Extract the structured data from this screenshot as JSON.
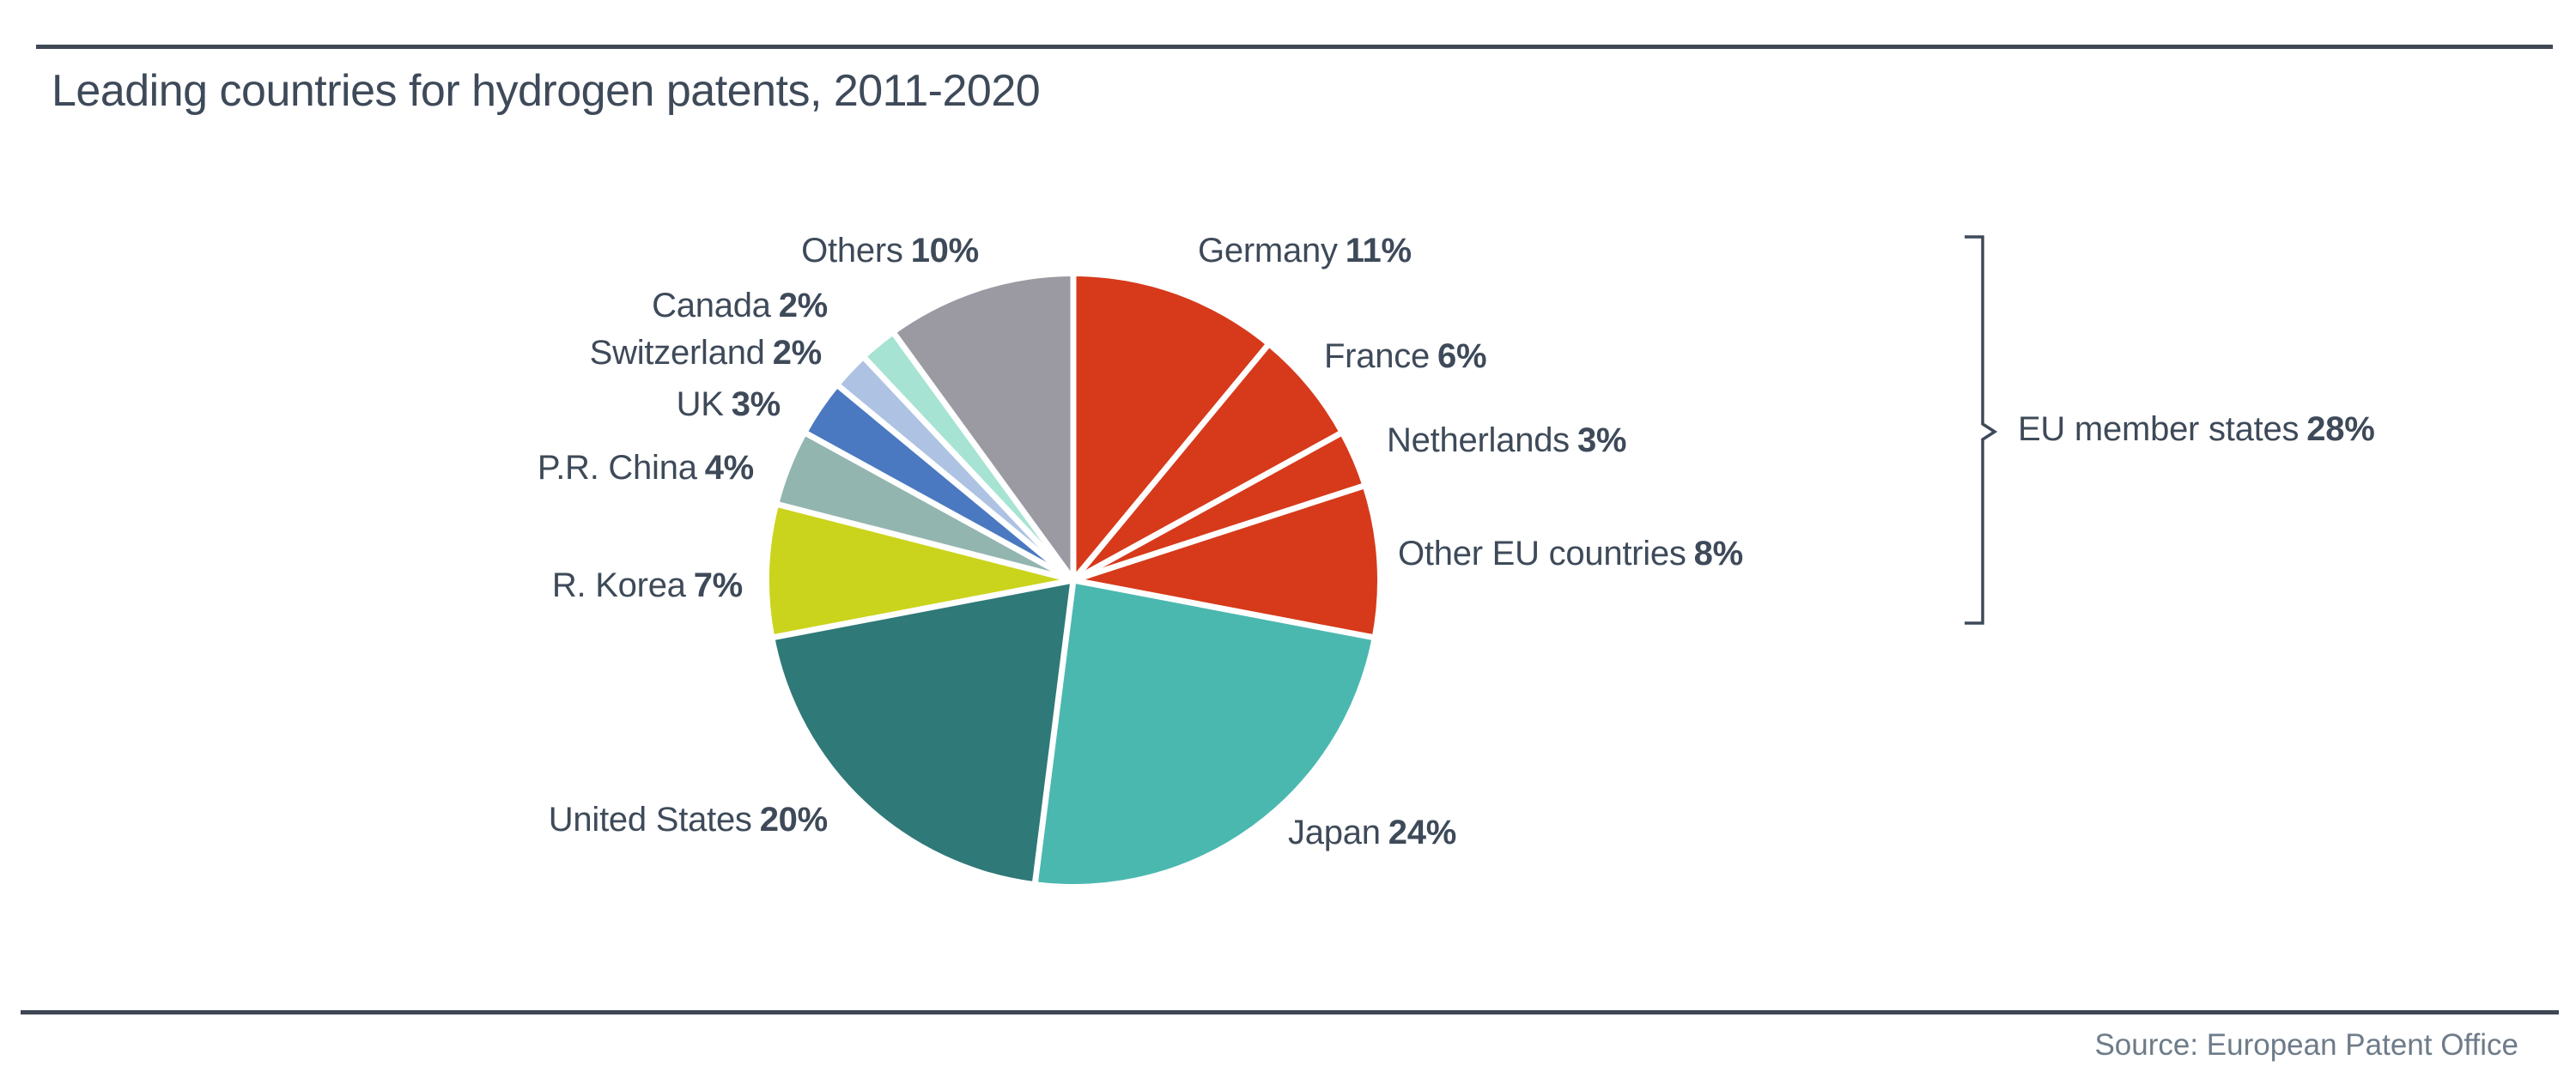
{
  "header": {
    "title": "Leading countries for hydrogen patents, 2011-2020"
  },
  "footer": {
    "source": "Source: European Patent Office"
  },
  "colors": {
    "text": "#3e4a59",
    "rule": "#3f4754",
    "source_text": "#6e7b89",
    "eu_red": "#d63a1b",
    "separator": "#ffffff"
  },
  "chart_data": {
    "type": "pie",
    "title": "Leading countries for hydrogen patents, 2011-2020",
    "unit": "%",
    "start_angle_deg": 0,
    "direction": "clockwise",
    "legend_position": "around-pie",
    "slices": [
      {
        "id": "germany",
        "name": "Germany",
        "value": 11,
        "pct_label": "11%",
        "color": "#d63a1b",
        "group": "EU member states"
      },
      {
        "id": "france",
        "name": "France",
        "value": 6,
        "pct_label": "6%",
        "color": "#d63a1b",
        "group": "EU member states"
      },
      {
        "id": "netherlands",
        "name": "Netherlands",
        "value": 3,
        "pct_label": "3%",
        "color": "#d63a1b",
        "group": "EU member states"
      },
      {
        "id": "other-eu",
        "name": "Other EU countries",
        "value": 8,
        "pct_label": "8%",
        "color": "#d63a1b",
        "group": "EU member states"
      },
      {
        "id": "japan",
        "name": "Japan",
        "value": 24,
        "pct_label": "24%",
        "color": "#4bb8b0"
      },
      {
        "id": "united-states",
        "name": "United States",
        "value": 20,
        "pct_label": "20%",
        "color": "#2f7978"
      },
      {
        "id": "r-korea",
        "name": "R. Korea",
        "value": 7,
        "pct_label": "7%",
        "color": "#cbd41c"
      },
      {
        "id": "pr-china",
        "name": "P.R. China",
        "value": 4,
        "pct_label": "4%",
        "color": "#93b5b0"
      },
      {
        "id": "uk",
        "name": "UK",
        "value": 3,
        "pct_label": "3%",
        "color": "#4b79c1"
      },
      {
        "id": "switzerland",
        "name": "Switzerland",
        "value": 2,
        "pct_label": "2%",
        "color": "#aec3e3"
      },
      {
        "id": "canada",
        "name": "Canada",
        "value": 2,
        "pct_label": "2%",
        "color": "#a6e3d3"
      },
      {
        "id": "others",
        "name": "Others",
        "value": 10,
        "pct_label": "10%",
        "color": "#9b9aa3"
      }
    ],
    "annotation": {
      "name": "EU member states",
      "value": 28,
      "pct_label": "28%"
    }
  }
}
